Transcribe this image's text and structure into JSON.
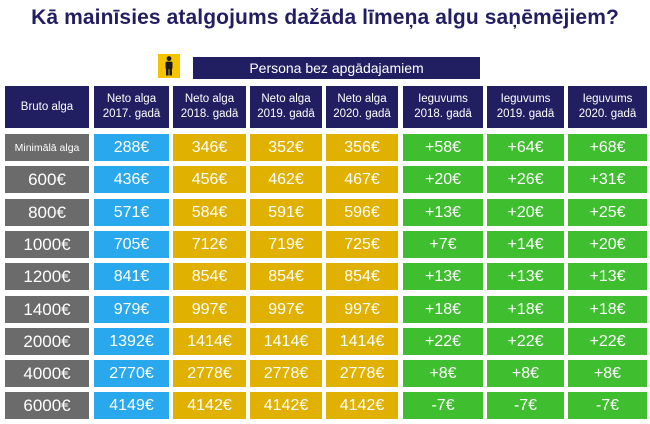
{
  "title": "Kā mainīsies atalgojums dažāda līmeņa algu saņēmējiem?",
  "person_icon": "person-icon",
  "banner": "Persona bez apgādajamiem",
  "colors": {
    "header": "#221e62",
    "gross": "#6b6b6b",
    "net_2017": "#29a8ee",
    "net_new": "#e0b100",
    "gain": "#3fbf2f"
  },
  "table": {
    "headers": [
      "Bruto alga",
      "Neto alga 2017. gadā",
      "Neto alga 2018. gadā",
      "Neto alga 2019. gadā",
      "Neto alga 2020. gadā",
      "Ieguvums 2018. gadā",
      "Ieguvums 2019. gadā",
      "Ieguvums 2020. gadā"
    ],
    "rows": [
      [
        "Minimālā alga",
        "288€",
        "346€",
        "352€",
        "356€",
        "+58€",
        "+64€",
        "+68€"
      ],
      [
        "600€",
        "436€",
        "456€",
        "462€",
        "467€",
        "+20€",
        "+26€",
        "+31€"
      ],
      [
        "800€",
        "571€",
        "584€",
        "591€",
        "596€",
        "+13€",
        "+20€",
        "+25€"
      ],
      [
        "1000€",
        "705€",
        "712€",
        "719€",
        "725€",
        "+7€",
        "+14€",
        "+20€"
      ],
      [
        "1200€",
        "841€",
        "854€",
        "854€",
        "854€",
        "+13€",
        "+13€",
        "+13€"
      ],
      [
        "1400€",
        "979€",
        "997€",
        "997€",
        "997€",
        "+18€",
        "+18€",
        "+18€"
      ],
      [
        "2000€",
        "1392€",
        "1414€",
        "1414€",
        "1414€",
        "+22€",
        "+22€",
        "+22€"
      ],
      [
        "4000€",
        "2770€",
        "2778€",
        "2778€",
        "2778€",
        "+8€",
        "+8€",
        "+8€"
      ],
      [
        "6000€",
        "4149€",
        "4142€",
        "4142€",
        "4142€",
        "-7€",
        "-7€",
        "-7€"
      ]
    ]
  }
}
